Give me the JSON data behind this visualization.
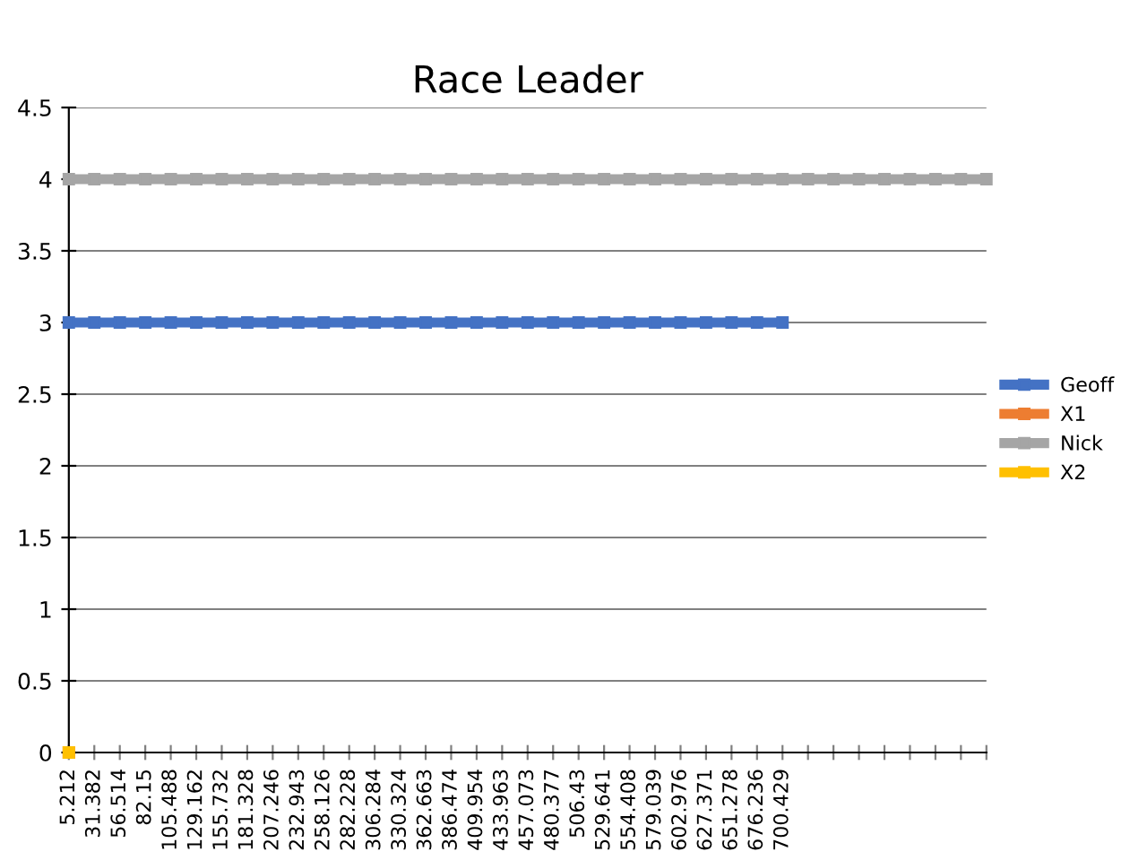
{
  "chart_data": {
    "type": "line",
    "title": "Race Leader",
    "categories": [
      "5.212",
      "31.382",
      "56.514",
      "82.15",
      "105.488",
      "129.162",
      "155.732",
      "181.328",
      "207.246",
      "232.943",
      "258.126",
      "282.228",
      "306.284",
      "330.324",
      "362.663",
      "386.474",
      "409.954",
      "433.963",
      "457.073",
      "480.377",
      "506.43",
      "529.641",
      "554.408",
      "579.039",
      "602.976",
      "627.371",
      "651.278",
      "676.236",
      "700.429",
      null,
      null,
      null,
      null,
      null,
      null,
      null,
      null
    ],
    "series": [
      {
        "name": "Geoff",
        "color": "#4472c4",
        "values": [
          3,
          3,
          3,
          3,
          3,
          3,
          3,
          3,
          3,
          3,
          3,
          3,
          3,
          3,
          3,
          3,
          3,
          3,
          3,
          3,
          3,
          3,
          3,
          3,
          3,
          3,
          3,
          3,
          3,
          null,
          null,
          null,
          null,
          null,
          null,
          null,
          null
        ]
      },
      {
        "name": "X1",
        "color": "#ed7d31",
        "values": [
          0,
          null,
          null,
          null,
          null,
          null,
          null,
          null,
          null,
          null,
          null,
          null,
          null,
          null,
          null,
          null,
          null,
          null,
          null,
          null,
          null,
          null,
          null,
          null,
          null,
          null,
          null,
          null,
          null,
          null,
          null,
          null,
          null,
          null,
          null,
          null,
          null
        ]
      },
      {
        "name": "Nick",
        "color": "#a5a5a5",
        "values": [
          4,
          4,
          4,
          4,
          4,
          4,
          4,
          4,
          4,
          4,
          4,
          4,
          4,
          4,
          4,
          4,
          4,
          4,
          4,
          4,
          4,
          4,
          4,
          4,
          4,
          4,
          4,
          4,
          4,
          4,
          4,
          4,
          4,
          4,
          4,
          4,
          4
        ]
      },
      {
        "name": "X2",
        "color": "#ffc000",
        "values": [
          0,
          null,
          null,
          null,
          null,
          null,
          null,
          null,
          null,
          null,
          null,
          null,
          null,
          null,
          null,
          null,
          null,
          null,
          null,
          null,
          null,
          null,
          null,
          null,
          null,
          null,
          null,
          null,
          null,
          null,
          null,
          null,
          null,
          null,
          null,
          null,
          null
        ]
      }
    ],
    "ylim": [
      0,
      4.5
    ],
    "yticks": [
      0,
      0.5,
      1,
      1.5,
      2,
      2.5,
      3,
      3.5,
      4,
      4.5
    ],
    "grid": "y",
    "legend": "right",
    "marker": "square",
    "line_style": "solid"
  }
}
